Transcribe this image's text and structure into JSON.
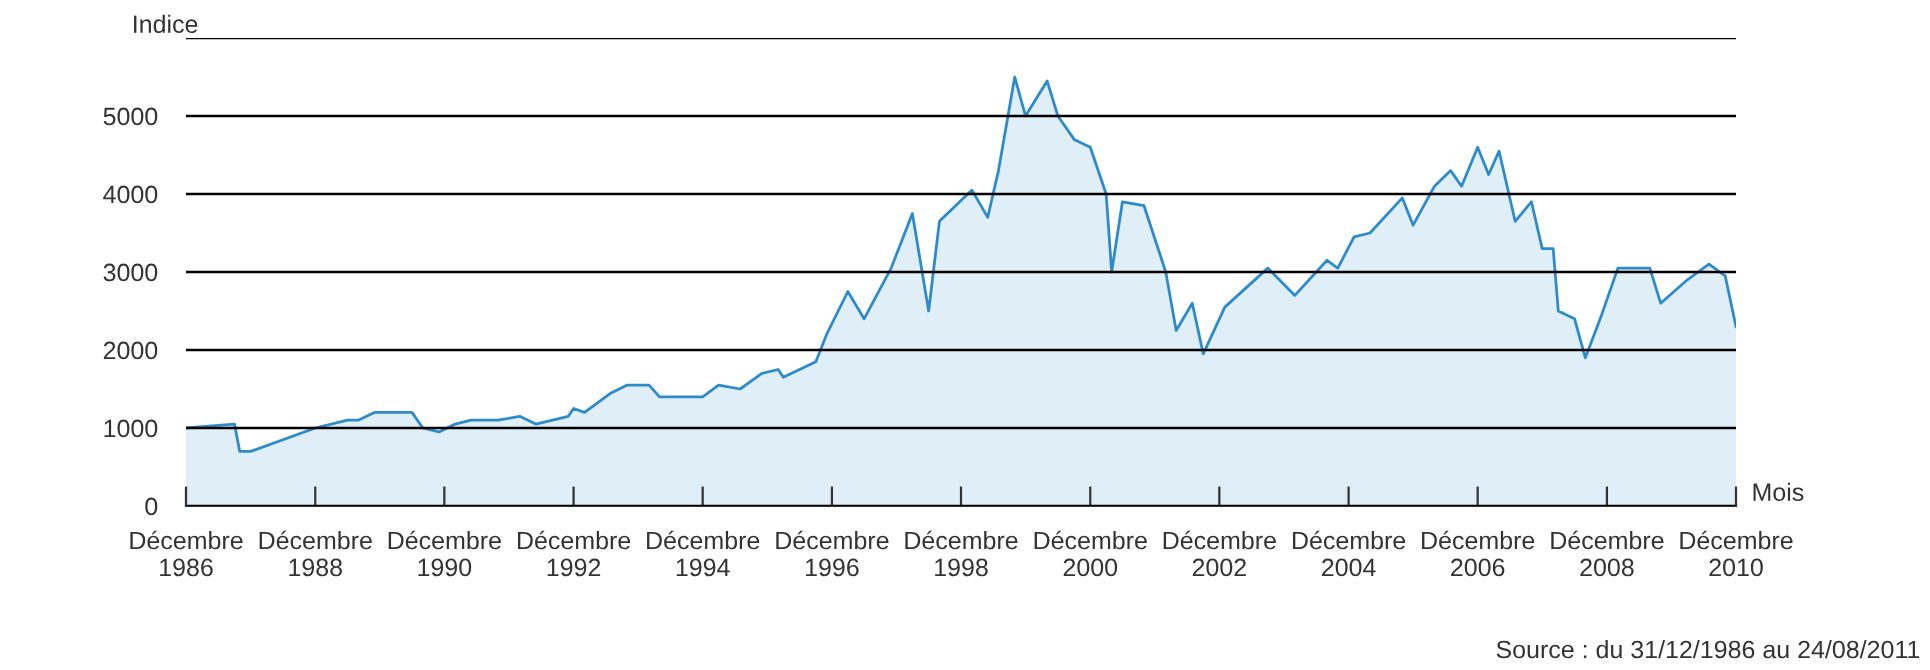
{
  "chart_data": {
    "type": "area",
    "ylabel": "Indice",
    "xlabel": "Mois",
    "x": [
      "1986-12",
      "1987-09",
      "1987-10",
      "1987-12",
      "1988-12",
      "1989-06",
      "1989-08",
      "1989-11",
      "1990-06",
      "1990-08",
      "1990-11",
      "1991-02",
      "1991-05",
      "1991-10",
      "1992-02",
      "1992-05",
      "1992-11",
      "1992-12",
      "1993-02",
      "1993-07",
      "1993-10",
      "1994-02",
      "1994-04",
      "1994-12",
      "1995-03",
      "1995-07",
      "1995-11",
      "1996-02",
      "1996-03",
      "1996-09",
      "1996-11",
      "1997-03",
      "1997-06",
      "1997-11",
      "1998-03",
      "1998-06",
      "1998-08",
      "1999-02",
      "1999-05",
      "1999-07",
      "1999-10",
      "1999-12",
      "2000-04",
      "2000-06",
      "2000-09",
      "2000-12",
      "2001-03",
      "2001-04",
      "2001-06",
      "2001-10",
      "2002-02",
      "2002-04",
      "2002-07",
      "2002-09",
      "2003-01",
      "2003-09",
      "2004-02",
      "2004-08",
      "2004-10",
      "2005-01",
      "2005-04",
      "2005-10",
      "2005-12",
      "2006-04",
      "2006-07",
      "2006-09",
      "2006-12",
      "2007-02",
      "2007-04",
      "2007-07",
      "2007-10",
      "2007-12",
      "2008-02",
      "2008-03",
      "2008-06",
      "2008-08",
      "2008-11",
      "2009-02",
      "2009-08",
      "2009-10",
      "2010-03",
      "2010-07",
      "2010-10",
      "2010-12"
    ],
    "series": [
      {
        "color": "#2e8bc9",
        "values": [
          1000,
          1050,
          700,
          700,
          1000,
          1100,
          1100,
          1200,
          1200,
          1000,
          950,
          1050,
          1100,
          1100,
          1150,
          1050,
          1150,
          1250,
          1200,
          1450,
          1550,
          1550,
          1400,
          1400,
          1550,
          1500,
          1700,
          1750,
          1650,
          1850,
          2200,
          2750,
          2400,
          3050,
          3750,
          2500,
          3650,
          4050,
          3700,
          4300,
          5500,
          5000,
          5450,
          5000,
          4700,
          4600,
          4000,
          3000,
          3900,
          3850,
          3000,
          2250,
          2600,
          1950,
          2550,
          3050,
          2700,
          3150,
          3050,
          3450,
          3500,
          3950,
          3600,
          4100,
          4300,
          4100,
          4600,
          4250,
          4550,
          3650,
          3900,
          3300,
          3300,
          2500,
          2400,
          1900,
          2450,
          3050,
          3050,
          2600,
          2900,
          3100,
          2950,
          2300
        ]
      }
    ],
    "xlim": [
      "1986-12",
      "2010-12"
    ],
    "xticks": [
      {
        "value": "1986-12",
        "label": "Décembre\n1986"
      },
      {
        "value": "1988-12",
        "label": "Décembre\n1988"
      },
      {
        "value": "1990-12",
        "label": "Décembre\n1990"
      },
      {
        "value": "1992-12",
        "label": "Décembre\n1992"
      },
      {
        "value": "1994-12",
        "label": "Décembre\n1994"
      },
      {
        "value": "1996-12",
        "label": "Décembre\n1996"
      },
      {
        "value": "1998-12",
        "label": "Décembre\n1998"
      },
      {
        "value": "2000-12",
        "label": "Décembre\n2000"
      },
      {
        "value": "2002-12",
        "label": "Décembre\n2002"
      },
      {
        "value": "2004-12",
        "label": "Décembre\n2004"
      },
      {
        "value": "2006-12",
        "label": "Décembre\n2006"
      },
      {
        "value": "2008-12",
        "label": "Décembre\n2008"
      },
      {
        "value": "2010-12",
        "label": "Décembre\n2010"
      }
    ],
    "ylim": [
      0,
      6000
    ],
    "yticks": [
      0,
      1000,
      2000,
      3000,
      4000,
      5000,
      {
        "value": 6000,
        "label": null
      }
    ],
    "grid": "y",
    "annotations": [
      "Source : du 31/12/1986 au 24/08/2011"
    ]
  }
}
